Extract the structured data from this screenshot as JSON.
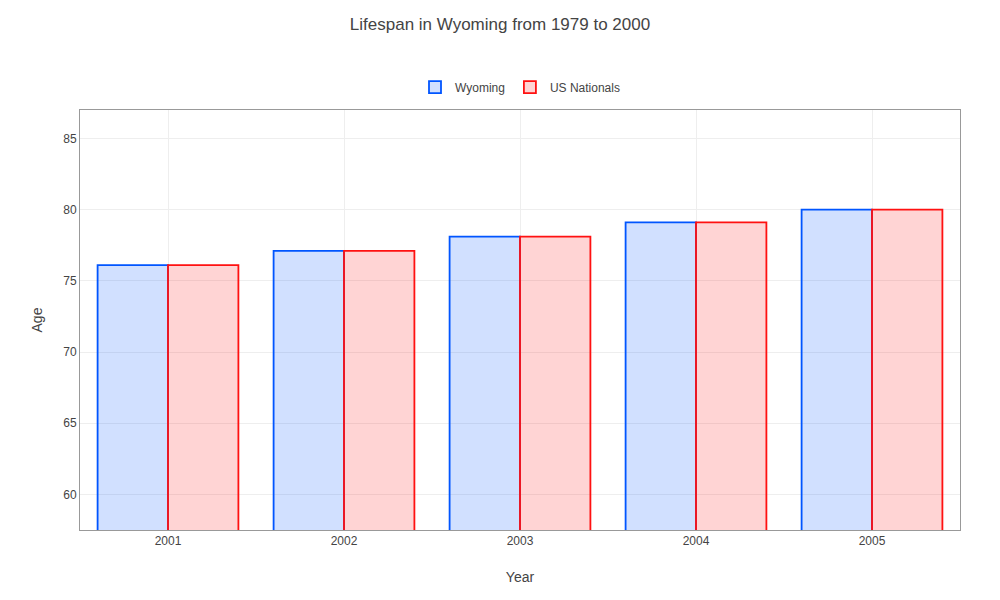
{
  "chart_data": {
    "type": "bar",
    "title": "Lifespan in Wyoming from 1979 to 2000",
    "xlabel": "Year",
    "ylabel": "Age",
    "categories": [
      "2001",
      "2002",
      "2003",
      "2004",
      "2005"
    ],
    "series": [
      {
        "name": "Wyoming",
        "color": "#0055ff",
        "values": [
          76.1,
          77.1,
          78.1,
          79.1,
          80.0
        ]
      },
      {
        "name": "US Nationals",
        "color": "#ff1111",
        "values": [
          76.1,
          77.1,
          78.1,
          79.1,
          80.0
        ]
      }
    ],
    "ylim": [
      57.5,
      87
    ],
    "yticks": [
      60,
      65,
      70,
      75,
      80,
      85
    ],
    "grid": true,
    "legend": "top"
  }
}
